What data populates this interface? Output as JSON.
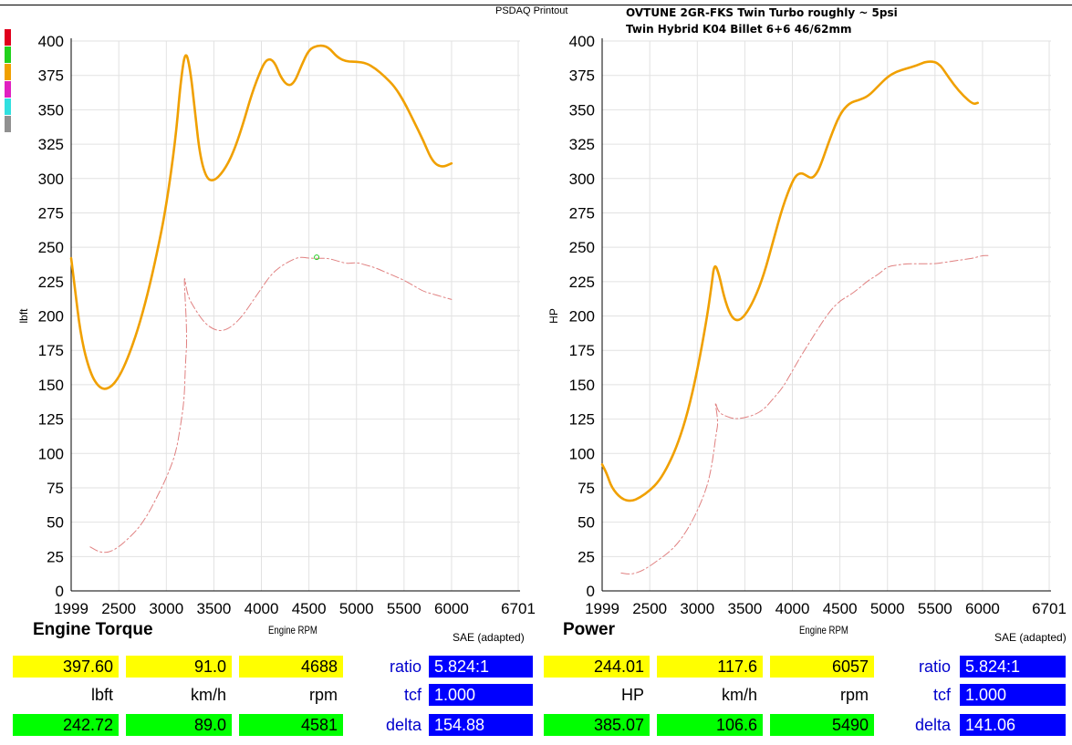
{
  "header": {
    "printout_label": "PSDAQ Printout",
    "title_line1": "OVTUNE 2GR-FKS Twin Turbo  roughly ~ 5psi",
    "title_line2": "Twin Hybrid K04 Billet 6+6 46/62mm"
  },
  "colors": {
    "primary": "#f0a000",
    "secondary": "#e08080",
    "highlight_yellow": "#ffff00",
    "highlight_green": "#00ff00",
    "highlight_blue": "#0000ff",
    "swatches": [
      "#e0001c",
      "#22d11c",
      "#f0a000",
      "#e020c0",
      "#30e0e0",
      "#909090"
    ]
  },
  "chart_data": [
    {
      "type": "line",
      "title": "Engine Torque",
      "xlabel": "Engine RPM",
      "ylabel": "lbft",
      "correction": "SAE (adapted)",
      "xlim": [
        1999,
        6701
      ],
      "ylim": [
        0,
        400
      ],
      "xticks": [
        1999,
        2500,
        3000,
        3500,
        4000,
        4500,
        5000,
        5500,
        6000,
        6701
      ],
      "yticks": [
        0,
        25,
        50,
        75,
        100,
        125,
        150,
        175,
        200,
        225,
        250,
        275,
        300,
        325,
        350,
        375,
        400
      ],
      "grid": true,
      "series": [
        {
          "style": "solid",
          "color": "#f0a000",
          "x": [
            1999,
            2030,
            2100,
            2200,
            2300,
            2400,
            2500,
            2600,
            2700,
            2800,
            2900,
            3000,
            3100,
            3150,
            3200,
            3250,
            3300,
            3350,
            3420,
            3500,
            3600,
            3700,
            3800,
            3900,
            4000,
            4050,
            4100,
            4150,
            4200,
            4280,
            4350,
            4420,
            4500,
            4600,
            4700,
            4800,
            4900,
            5000,
            5100,
            5200,
            5300,
            5400,
            5500,
            5600,
            5700,
            5800,
            5900,
            6000
          ],
          "y": [
            242,
            225,
            185,
            158,
            147,
            147,
            155,
            170,
            190,
            215,
            245,
            280,
            330,
            370,
            394,
            380,
            350,
            318,
            300,
            298,
            305,
            318,
            338,
            362,
            380,
            386,
            387,
            383,
            374,
            367,
            370,
            382,
            394,
            397,
            396,
            388,
            385,
            385,
            384,
            380,
            374,
            367,
            356,
            342,
            328,
            312,
            308,
            311
          ]
        },
        {
          "style": "dash-dot",
          "color": "#e08080",
          "x": [
            2200,
            2300,
            2400,
            2500,
            2600,
            2700,
            2800,
            2900,
            3000,
            3100,
            3150,
            3190,
            3200,
            3220,
            3180,
            3220,
            3300,
            3400,
            3500,
            3600,
            3700,
            3800,
            3900,
            4000,
            4100,
            4200,
            4300,
            4400,
            4500,
            4600,
            4700,
            4800,
            4900,
            5000,
            5100,
            5200,
            5300,
            5400,
            5500,
            5600,
            5700,
            5800,
            5900,
            6000
          ],
          "y": [
            32,
            28,
            28,
            32,
            38,
            45,
            55,
            68,
            82,
            100,
            120,
            140,
            165,
            185,
            234,
            215,
            205,
            195,
            190,
            189,
            193,
            200,
            210,
            220,
            230,
            236,
            240,
            243,
            242,
            242,
            242,
            240,
            238,
            239,
            237,
            235,
            232,
            229,
            226,
            222,
            218,
            216,
            214,
            212
          ]
        }
      ],
      "marker": {
        "x": 4581,
        "y": 242.72
      }
    },
    {
      "type": "line",
      "title": "Power",
      "xlabel": "Engine RPM",
      "ylabel": "HP",
      "correction": "SAE (adapted)",
      "xlim": [
        1999,
        6701
      ],
      "ylim": [
        0,
        400
      ],
      "xticks": [
        1999,
        2500,
        3000,
        3500,
        4000,
        4500,
        5000,
        5500,
        6000,
        6701
      ],
      "yticks": [
        0,
        25,
        50,
        75,
        100,
        125,
        150,
        175,
        200,
        225,
        250,
        275,
        300,
        325,
        350,
        375,
        400
      ],
      "grid": true,
      "series": [
        {
          "style": "solid",
          "color": "#f0a000",
          "x": [
            1999,
            2050,
            2100,
            2200,
            2300,
            2400,
            2500,
            2600,
            2700,
            2800,
            2900,
            3000,
            3100,
            3150,
            3180,
            3230,
            3280,
            3350,
            3420,
            3500,
            3600,
            3700,
            3800,
            3900,
            4000,
            4050,
            4100,
            4150,
            4200,
            4250,
            4300,
            4400,
            4500,
            4600,
            4700,
            4800,
            4900,
            5000,
            5100,
            5200,
            5300,
            5400,
            5500,
            5560,
            5600,
            5700,
            5800,
            5900,
            5950
          ],
          "y": [
            92,
            85,
            75,
            67,
            65,
            68,
            73,
            80,
            92,
            108,
            130,
            160,
            198,
            222,
            239,
            230,
            214,
            200,
            196,
            200,
            212,
            230,
            255,
            280,
            298,
            303,
            304,
            302,
            300,
            303,
            310,
            330,
            347,
            355,
            357,
            360,
            367,
            374,
            378,
            380,
            382,
            385,
            385,
            382,
            378,
            368,
            360,
            354,
            355
          ]
        },
        {
          "style": "dash-dot",
          "color": "#e08080",
          "x": [
            2200,
            2300,
            2400,
            2500,
            2600,
            2700,
            2800,
            2900,
            3000,
            3100,
            3150,
            3180,
            3200,
            3220,
            3180,
            3220,
            3300,
            3400,
            3500,
            3600,
            3700,
            3800,
            3900,
            4000,
            4100,
            4200,
            4300,
            4400,
            4500,
            4600,
            4700,
            4800,
            4900,
            5000,
            5100,
            5200,
            5300,
            5400,
            5500,
            5600,
            5700,
            5800,
            5900,
            6000,
            6057
          ],
          "y": [
            13,
            12,
            14,
            18,
            23,
            28,
            35,
            45,
            58,
            75,
            90,
            105,
            115,
            123,
            140,
            130,
            127,
            125,
            126,
            128,
            132,
            140,
            148,
            160,
            172,
            183,
            194,
            204,
            211,
            215,
            220,
            226,
            230,
            236,
            237,
            238,
            238,
            238,
            238,
            239,
            240,
            241,
            242,
            244,
            244
          ]
        }
      ]
    }
  ],
  "torque_panel": {
    "title": "Engine Torque",
    "xlabel": "Engine RPM",
    "sae": "SAE (adapted)",
    "row1": [
      "397.60",
      "91.0",
      "4688"
    ],
    "units": [
      "lbft",
      "km/h",
      "rpm"
    ],
    "row3": [
      "242.72",
      "89.0",
      "4581"
    ],
    "ratio_label": "ratio",
    "ratio_value": "5.824:1",
    "tcf_label": "tcf",
    "tcf_value": "1.000",
    "delta_label": "delta",
    "delta_value": "154.88"
  },
  "power_panel": {
    "title": "Power",
    "xlabel": "Engine RPM",
    "sae": "SAE (adapted)",
    "row1": [
      "244.01",
      "117.6",
      "6057"
    ],
    "units": [
      "HP",
      "km/h",
      "rpm"
    ],
    "row3": [
      "385.07",
      "106.6",
      "5490"
    ],
    "ratio_label": "ratio",
    "ratio_value": "5.824:1",
    "tcf_label": "tcf",
    "tcf_value": "1.000",
    "delta_label": "delta",
    "delta_value": "141.06"
  }
}
